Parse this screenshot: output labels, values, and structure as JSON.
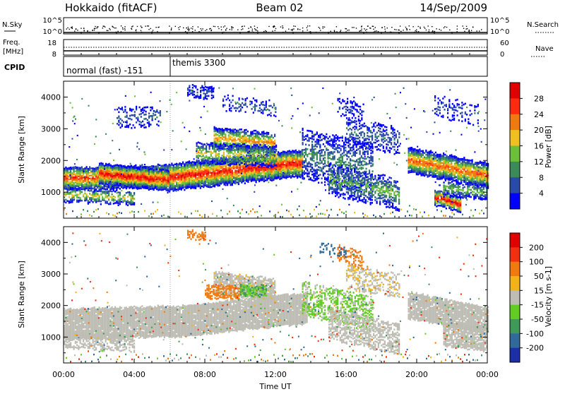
{
  "header": {
    "title": "Hokkaido (fitACF)",
    "beam": "Beam 02",
    "date": "14/Sep/2009"
  },
  "top_panels": {
    "nsky_label": "N.Sky",
    "nsky_tick_top": "10^5",
    "nsky_tick_bottom": "10^0",
    "nsearch_label": "N.Search",
    "nsearch_tick_top": "10^5",
    "nsearch_tick_bottom": "10^0",
    "freq_label_line1": "Freq.",
    "freq_label_line2": "[MHz]",
    "freq_tick_top": "18",
    "freq_tick_bottom": "8",
    "nave_label": "Nave",
    "nave_tick_top": "60",
    "nave_tick_bottom": "0",
    "cpid_label": "CPID",
    "cpid_mode_1": "normal (fast) -151",
    "cpid_mode_2": "themis 3300",
    "cpid_mode_2_start": "06:10"
  },
  "chart_data": [
    {
      "type": "heatmap",
      "xlabel": "Time UT",
      "ylabel": "Slant Range [km]",
      "ytick_labels": [
        "1000",
        "2000",
        "3000",
        "4000"
      ],
      "ylim": [
        180,
        4500
      ],
      "xlim": [
        "00:00",
        "24:00"
      ],
      "colorbar": {
        "label": "Power [dB]",
        "tick_labels": [
          "4",
          "8",
          "12",
          "16",
          "20",
          "24",
          "28"
        ],
        "range": [
          0,
          32
        ],
        "colors": [
          "#0000ff",
          "#2a4aa8",
          "#3a8a5a",
          "#6cbf3a",
          "#f0c020",
          "#f07a10",
          "#ff2a10",
          "#e00000"
        ]
      }
    },
    {
      "type": "heatmap",
      "xlabel": "Time UT",
      "ylabel": "Slant Range [km]",
      "ytick_labels": [
        "1000",
        "2000",
        "3000",
        "4000"
      ],
      "xtick_labels": [
        "00:00",
        "04:00",
        "08:00",
        "12:00",
        "16:00",
        "20:00",
        "00:00"
      ],
      "ylim": [
        180,
        4500
      ],
      "xlim": [
        "00:00",
        "24:00"
      ],
      "colorbar": {
        "label": "Velocity [m s-1]",
        "tick_labels": [
          "200",
          "100",
          "50",
          "15",
          "-15",
          "-50",
          "-100",
          "-200"
        ],
        "range": [
          -250,
          250
        ],
        "colors": [
          "#1c2fa8",
          "#2f6a9a",
          "#3f9a5a",
          "#62cc22",
          "#bdbdb4",
          "#f2b318",
          "#f07a10",
          "#f03010",
          "#e00000"
        ]
      }
    }
  ]
}
